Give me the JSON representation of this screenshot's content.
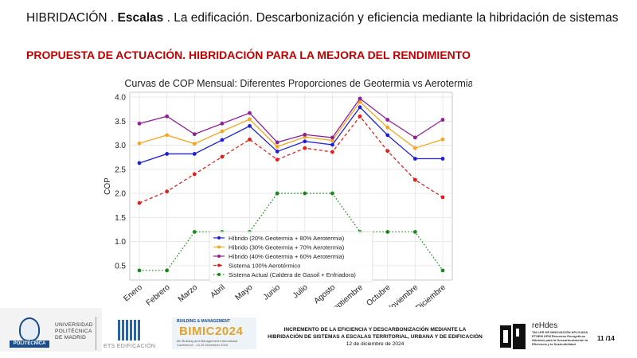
{
  "header": {
    "prefix": "HIBRIDACIÓN .",
    "bold": "Escalas",
    "rest": ". La edificación. Descarbonización y eficiencia mediante la hibridación de sistemas"
  },
  "subtitle": "PROPUESTA DE ACTUACIÓN. HIBRIDACIÓN PARA LA MEJORA DEL RENDIMIENTO",
  "chart_data": {
    "type": "line",
    "title": "Curvas de COP Mensual: Diferentes Proporciones de Geotermia vs Aerotermia",
    "xlabel": "",
    "ylabel": "COP",
    "ylim": [
      0.2,
      4.1
    ],
    "yticks": [
      "0.5",
      "1.0",
      "1.5",
      "2.0",
      "2.5",
      "3.0",
      "3.5",
      "4.0"
    ],
    "grid": true,
    "legend_position": "lower-center",
    "categories": [
      "Enero",
      "Febrero",
      "Marzo",
      "Abril",
      "Mayo",
      "Junio",
      "Julio",
      "Agosto",
      "Septiembre",
      "Octubre",
      "Noviembre",
      "Diciembre"
    ],
    "series": [
      {
        "name": "Híbrido (20% Geotermia + 80% Aerotermia)",
        "color": "#1f1fd6",
        "dash": "solid",
        "values": [
          2.63,
          2.82,
          2.82,
          3.11,
          3.4,
          2.87,
          3.08,
          3.01,
          3.79,
          3.21,
          2.72,
          2.72
        ]
      },
      {
        "name": "Híbrido (30% Geotermia + 70% Aerotermia)",
        "color": "#f5a623",
        "dash": "solid",
        "values": [
          3.04,
          3.21,
          3.03,
          3.29,
          3.54,
          2.97,
          3.17,
          3.1,
          3.9,
          3.37,
          2.94,
          3.12
        ]
      },
      {
        "name": "Híbrido (40% Geotermia + 60% Aerotermia)",
        "color": "#8e2196",
        "dash": "solid",
        "values": [
          3.45,
          3.6,
          3.23,
          3.45,
          3.67,
          3.06,
          3.22,
          3.16,
          3.97,
          3.53,
          3.16,
          3.53
        ]
      },
      {
        "name": "Sistema 100% Aerotérmico",
        "color": "#e0201c",
        "dash": "dashed",
        "values": [
          1.8,
          2.04,
          2.4,
          2.76,
          3.12,
          2.7,
          2.94,
          2.86,
          3.6,
          2.88,
          2.28,
          1.92
        ]
      },
      {
        "name": "Sistema Actual (Caldera de Gasoil + Enfriadora)",
        "color": "#1a8a1a",
        "dash": "dotted",
        "values": [
          0.4,
          0.4,
          1.2,
          1.2,
          1.2,
          2.0,
          2.0,
          2.0,
          1.2,
          1.2,
          1.2,
          0.4
        ]
      }
    ]
  },
  "footer": {
    "upm_bar": "POLITÉCNICA",
    "upm_line1": "UNIVERSIDAD",
    "upm_line2": "POLITÉCNICA",
    "upm_line3": "DE MADRID",
    "ets": "ETS EDIFICACIÓN",
    "bimic_small": "BUILDING & MANAGEMENT",
    "bimic_big": "BIMIC2024",
    "bimic_tiny": "8th Building and Management International Conference · 13-15 November 2024",
    "center_line1": "INCREMENTO DE LA EFICIENCIA Y DESCARBONIZACIÓN MEDIANTE LA",
    "center_line2": "HIBRIDACIÓN  DE SISTEMAS A ESCALAS TERRITORIAL, URBANA Y DE EDIFICACIÓN",
    "date": "12 de diciembre de 2024",
    "rehdes_title": "reHdes",
    "rehdes_sub": "TALLER DE INNOVACIÓN APLICADA ETSEM UPM Recursos Energéticos Híbridos para la Descarbonización la Eficiencia y la Sostenibilidad",
    "page": "11 /14"
  }
}
